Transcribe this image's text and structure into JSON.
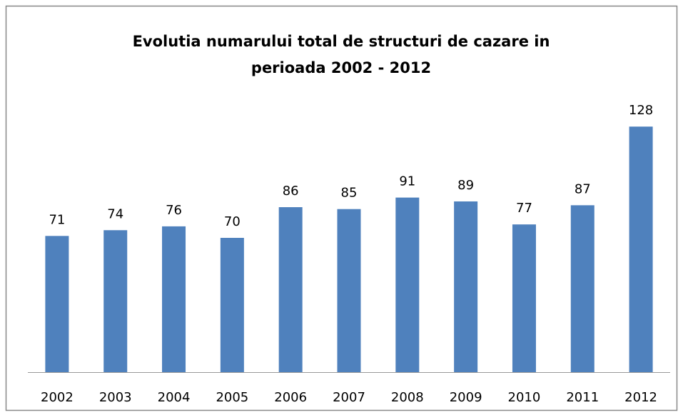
{
  "chart_data": {
    "type": "bar",
    "title": [
      "Evolutia numarului total de structuri de cazare in",
      "perioada 2002 - 2012"
    ],
    "categories": [
      "2002",
      "2003",
      "2004",
      "2005",
      "2006",
      "2007",
      "2008",
      "2009",
      "2010",
      "2011",
      "2012"
    ],
    "values": [
      71,
      74,
      76,
      70,
      86,
      85,
      91,
      89,
      77,
      87,
      128
    ],
    "color": "#4f81bd",
    "ylim": [
      0,
      140
    ]
  }
}
